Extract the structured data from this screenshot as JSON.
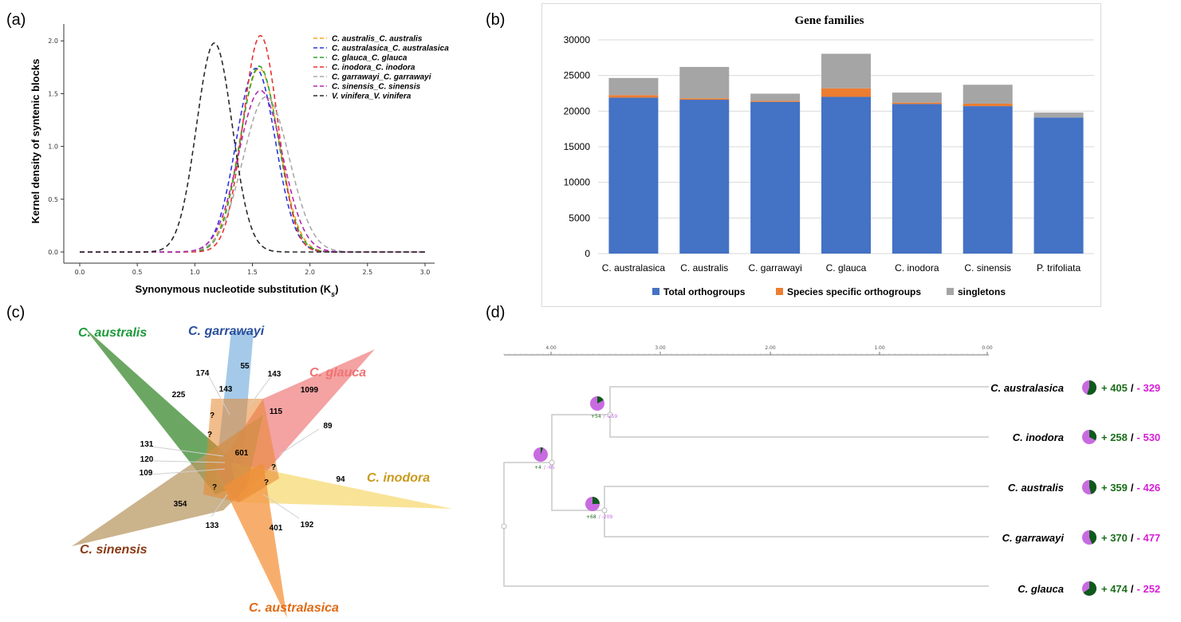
{
  "panel_labels": [
    "(a)",
    "(b)",
    "(c)",
    "(d)"
  ],
  "chart_data": [
    {
      "panel": "(a)",
      "type": "line",
      "xlabel": "Synonymous nucleotide substitution (K",
      "xlabel_sub": "s",
      "xlabel_close": ")",
      "ylabel": "Kernel density of syntenic blocks",
      "xlim": [
        0.0,
        3.0
      ],
      "ylim": [
        0.0,
        2.1
      ],
      "xticks": [
        "0.0",
        "0.5",
        "1.0",
        "1.5",
        "2.0",
        "2.5",
        "3.0"
      ],
      "yticks": [
        "0.0",
        "0.5",
        "1.0",
        "1.5",
        "2.0"
      ],
      "legend_position": "top-right",
      "series": [
        {
          "name": "C. australis_C. australis",
          "color": "#f5a623",
          "mu": 1.56,
          "sigma": 0.17,
          "peak": 1.74
        },
        {
          "name": "C. australasica_C. australasica",
          "color": "#2b35e0",
          "mu": 1.53,
          "sigma": 0.17,
          "peak": 1.74
        },
        {
          "name": "C. glauca_C. glauca",
          "color": "#2ca02c",
          "mu": 1.56,
          "sigma": 0.165,
          "peak": 1.76
        },
        {
          "name": "C. inodora_C. inodora",
          "color": "#e8322e",
          "mu": 1.57,
          "sigma": 0.15,
          "peak": 2.05
        },
        {
          "name": "C. garrawayi_C. garrawayi",
          "color": "#a9a9a9",
          "mu": 1.62,
          "sigma": 0.2,
          "peak": 1.47
        },
        {
          "name": "C. sinensis_C. sinensis",
          "color": "#b02ab0",
          "mu": 1.57,
          "sigma": 0.19,
          "peak": 1.53
        },
        {
          "name": "V. vinifera_V. vinifera",
          "color": "#2a2a2a",
          "mu": 1.17,
          "sigma": 0.155,
          "peak": 1.98
        }
      ]
    },
    {
      "panel": "(b)",
      "type": "bar",
      "title": "Gene families",
      "categories": [
        "C. australasica",
        "C. australis",
        "C. garrawayi",
        "C. glauca",
        "C. inodora",
        "C. sinensis",
        "P. trifoliata"
      ],
      "ylim": [
        0,
        30000
      ],
      "yticks": [
        "0",
        "5000",
        "10000",
        "15000",
        "20000",
        "25000",
        "30000"
      ],
      "legend_position": "bottom",
      "stacked": true,
      "series": [
        {
          "name": "Total orthogroups",
          "color": "#4472c4",
          "values": [
            21900,
            21600,
            21300,
            22000,
            21000,
            20700,
            19100
          ]
        },
        {
          "name": "Species specific orthogroups",
          "color": "#ed7d31",
          "values": [
            350,
            200,
            150,
            1200,
            200,
            350,
            0
          ]
        },
        {
          "name": "singletons",
          "color": "#a5a5a5",
          "values": [
            2400,
            4400,
            1000,
            4850,
            1400,
            2650,
            700
          ]
        }
      ]
    }
  ],
  "venn": {
    "sets": [
      {
        "name": "C. australis",
        "color": "#1e9a3c"
      },
      {
        "name": "C. garrawayi",
        "color": "#2b4f9c"
      },
      {
        "name": "C. glauca",
        "color": "#f07373"
      },
      {
        "name": "C. inodora",
        "color": "#c99a1e"
      },
      {
        "name": "C. sinensis",
        "color": "#8a3a14"
      },
      {
        "name": "C. australasica",
        "color": "#e06a12"
      }
    ],
    "counts": [
      "174",
      "55",
      "143",
      "225",
      "143",
      "1099",
      "115",
      "89",
      "?",
      "?",
      "601",
      "?",
      "131",
      "120",
      "109",
      "?",
      "94",
      "?",
      "354",
      "133",
      "401",
      "192"
    ]
  },
  "tree": {
    "scale_ticks": [
      "4.00",
      "3.00",
      "2.00",
      "1.00",
      "0.00"
    ],
    "internal_nodes": [
      {
        "gain": "+4",
        "loss": "/ -65"
      },
      {
        "gain": "+54",
        "loss": "/ -259"
      },
      {
        "gain": "+68",
        "loss": "/ -209"
      }
    ],
    "leaves": [
      {
        "name": "C. australasica",
        "gain": "+ 405",
        "sep": "/",
        "loss": "- 329"
      },
      {
        "name": "C. inodora",
        "gain": "+ 258",
        "sep": "/",
        "loss": "- 530"
      },
      {
        "name": "C. australis",
        "gain": "+ 359",
        "sep": "/",
        "loss": "- 426"
      },
      {
        "name": "C. garrawayi",
        "gain": "+ 370",
        "sep": "/",
        "loss": "- 477"
      },
      {
        "name": "C. glauca",
        "gain": "+ 474",
        "sep": "/",
        "loss": "- 252"
      }
    ],
    "gain_color": "#1a6e1a",
    "loss_color": "#d61fd6"
  }
}
